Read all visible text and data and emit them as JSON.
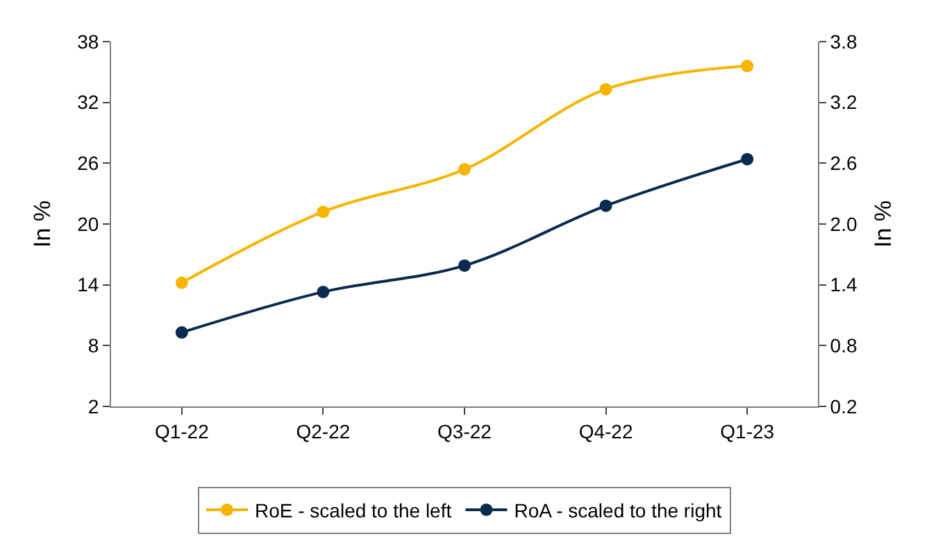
{
  "chart_data": {
    "type": "line",
    "ylabel": "In %",
    "y2label": "In %",
    "categories": [
      "Q1-22",
      "Q2-22",
      "Q3-22",
      "Q4-22",
      "Q1-23"
    ],
    "series": [
      {
        "name": "RoE - scaled to the left",
        "color": "#f7b500",
        "values": [
          14.2,
          21.2,
          25.4,
          33.3,
          35.6
        ]
      },
      {
        "name": "RoA - scaled to the right",
        "color": "#0b2a4f",
        "axis": "y2",
        "values": [
          0.93,
          1.33,
          1.59,
          2.18,
          2.64
        ]
      }
    ],
    "ylim": [
      2,
      38
    ],
    "yticks": [
      2,
      8,
      14,
      20,
      26,
      32,
      38
    ],
    "y2lim": [
      0.2,
      3.8
    ],
    "y2ticks": [
      0.2,
      0.8,
      1.4,
      {
        "value": 2,
        "label": "2.0"
      },
      2.6,
      3.2,
      3.8
    ],
    "grid": false,
    "legend": "bottom",
    "marker": "circle",
    "line_style": "solid"
  }
}
